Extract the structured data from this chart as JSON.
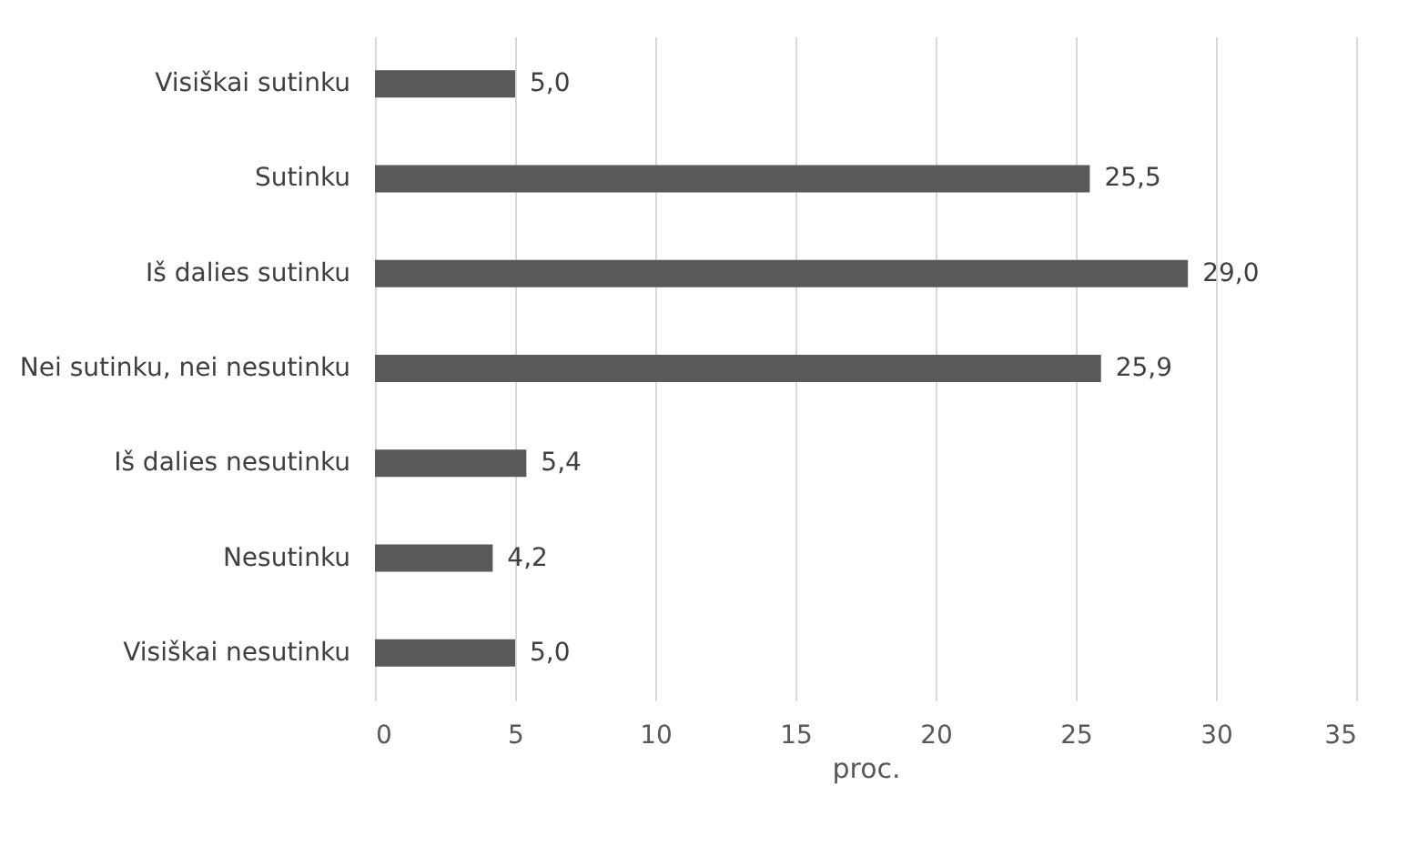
{
  "chart_data": {
    "type": "bar",
    "orientation": "horizontal",
    "xlabel": "proc.",
    "categories": [
      "Visiškai sutinku",
      "Sutinku",
      "Iš dalies sutinku",
      "Nei sutinku, nei nesutinku",
      "Iš dalies nesutinku",
      "Nesutinku",
      "Visiškai nesutinku"
    ],
    "values": [
      5.0,
      25.5,
      29.0,
      25.9,
      5.4,
      4.2,
      5.0
    ],
    "value_labels": [
      "5,0",
      "25,5",
      "29,0",
      "25,9",
      "5,4",
      "4,2",
      "5,0"
    ],
    "color": "#595959",
    "xlim": [
      0,
      35
    ],
    "xticks": [
      0,
      5,
      10,
      15,
      20,
      25,
      30,
      35
    ],
    "grid": "x"
  }
}
